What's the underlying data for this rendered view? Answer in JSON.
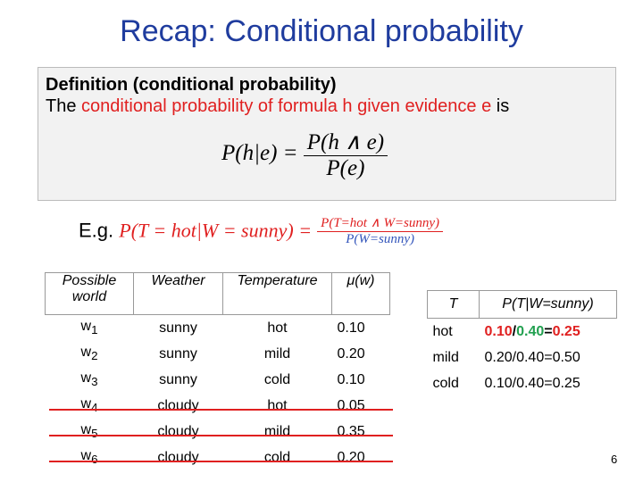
{
  "title": "Recap: Conditional probability",
  "definition": {
    "heading": "Definition (conditional probability)",
    "text": [
      "The ",
      "conditional probability of formula h given evidence e",
      " is"
    ],
    "formula": {
      "lhs": "P(h|e) =",
      "numerator": "P(h ∧ e)",
      "denominator": "P(e)"
    }
  },
  "example": {
    "label": "E.g.",
    "lhs": "P(T = hot|W = sunny) =",
    "numerator": "P(T=hot ∧ W=sunny)",
    "denominator": "P(W=sunny)"
  },
  "world_table": {
    "header": [
      "Possible world",
      "Weather",
      "Temperature",
      "μ(w)"
    ],
    "rows": [
      [
        {
          "base": "w",
          "sub": "1"
        },
        "sunny",
        "hot",
        "0.10"
      ],
      [
        {
          "base": "w",
          "sub": "2"
        },
        "sunny",
        "mild",
        "0.20"
      ],
      [
        {
          "base": "w",
          "sub": "3"
        },
        "sunny",
        "cold",
        "0.10"
      ],
      [
        {
          "base": "w",
          "sub": "4"
        },
        "cloudy",
        "hot",
        "0.05"
      ],
      [
        {
          "base": "w",
          "sub": "5"
        },
        "cloudy",
        "mild",
        "0.35"
      ],
      [
        {
          "base": "w",
          "sub": "6"
        },
        "cloudy",
        "cold",
        "0.20"
      ]
    ]
  },
  "conditional_table": {
    "header": [
      "T",
      "P(T|W=sunny)"
    ],
    "rows": [
      [
        "hot",
        [
          "0.10",
          "/",
          "0.40",
          "=",
          "0.25"
        ]
      ],
      [
        "mild",
        "0.20/0.40=0.50"
      ],
      [
        "cold",
        "0.10/0.40=0.25"
      ]
    ]
  },
  "page_number": "6"
}
